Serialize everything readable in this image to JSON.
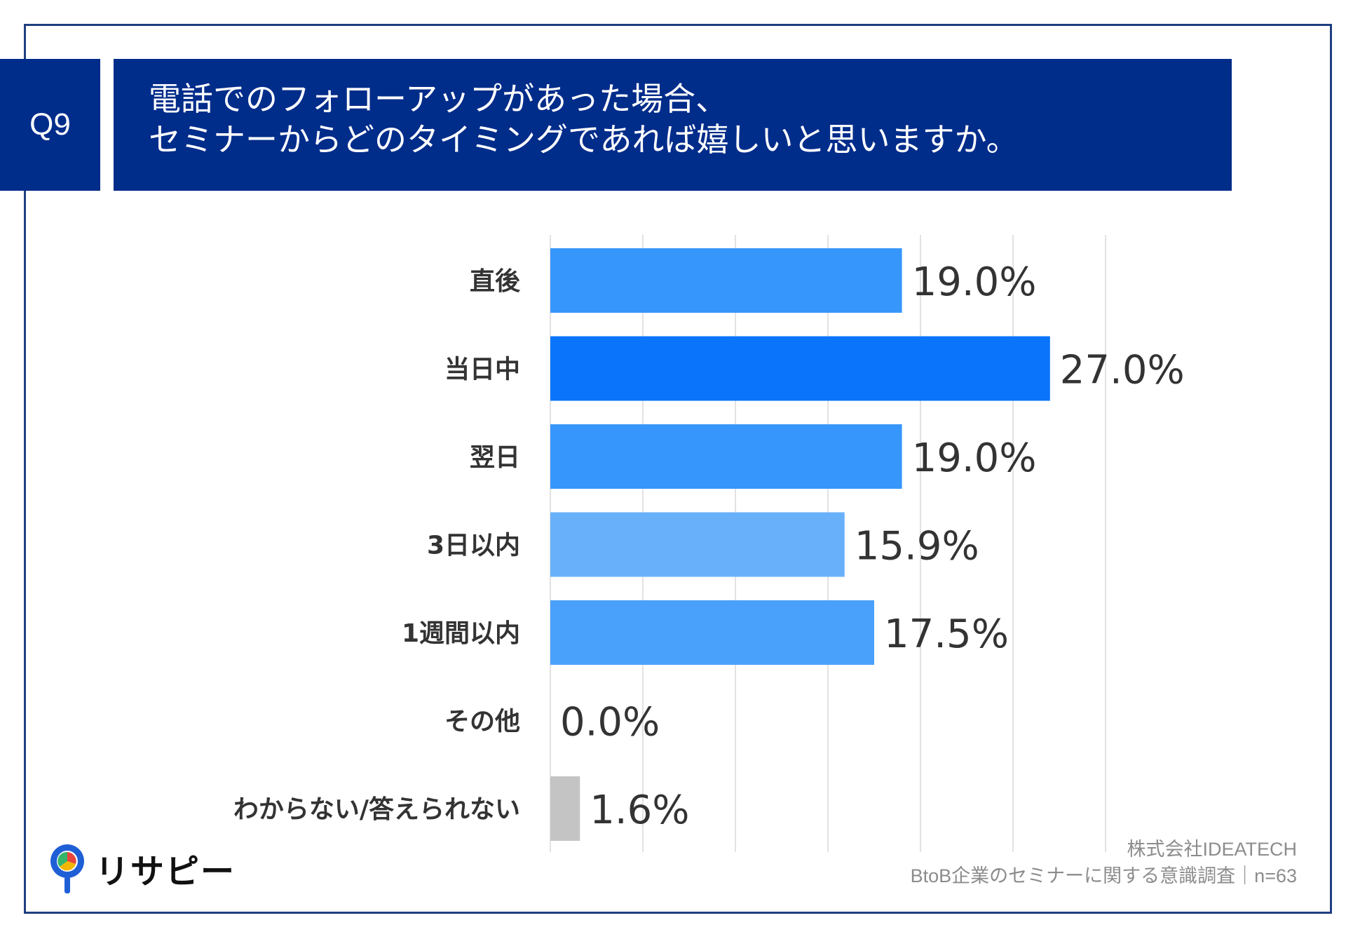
{
  "question": {
    "number": "Q9",
    "title_lines": [
      "電話でのフォローアップがあった場合、",
      "セミナーからどのタイミングであれば嬉しいと思いますか。"
    ]
  },
  "chart_data": {
    "type": "bar",
    "orientation": "horizontal",
    "categories": [
      "直後",
      "当日中",
      "翌日",
      "3日以内",
      "1週間以内",
      "その他",
      "わからない/答えられない"
    ],
    "values": [
      19.0,
      27.0,
      19.0,
      15.9,
      17.5,
      0.0,
      1.6
    ],
    "value_labels": [
      "19.0%",
      "27.0%",
      "19.0%",
      "15.9%",
      "17.5%",
      "0.0%",
      "1.6%"
    ],
    "colors": [
      "#3796fc",
      "#0a74fa",
      "#3796fc",
      "#69b0fb",
      "#4aa1fc",
      "#3796fc",
      "#c4c4c4"
    ],
    "xlim": [
      0,
      30
    ],
    "grid": true,
    "unit": "%"
  },
  "footer": {
    "company": "株式会社IDEATECH",
    "survey": "BtoB企業のセミナーに関する意識調査｜n=63"
  },
  "logo": {
    "text": "リサピー",
    "brand_colors": [
      "#1f5fd6",
      "#f2b705",
      "#e8453c",
      "#35b56a"
    ]
  }
}
